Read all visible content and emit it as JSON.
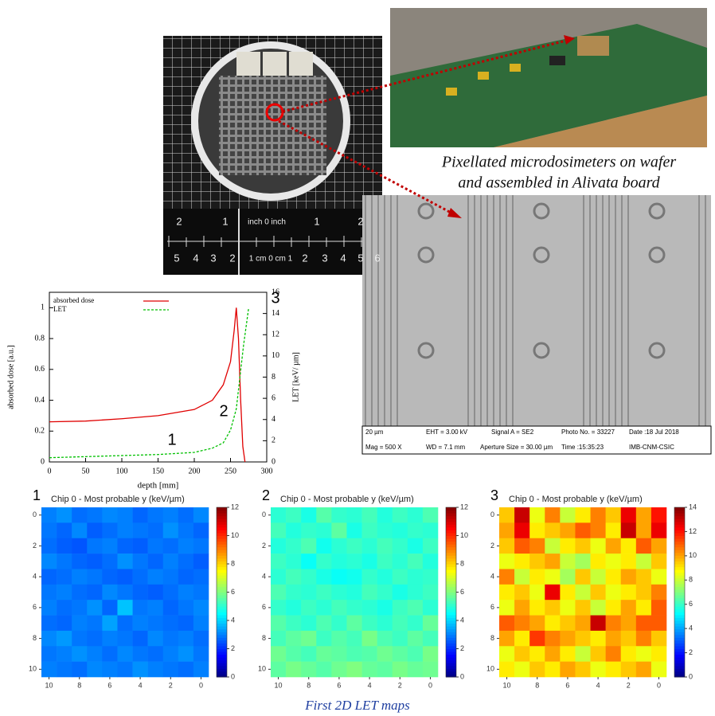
{
  "photos": {
    "caption": [
      "Pixellated microdosimeters on wafer",
      "and assembled in Alivata board"
    ],
    "ruler_top": [
      "2",
      "1",
      "inch 0 inch",
      "1",
      "2"
    ],
    "ruler_bottom": [
      "5",
      "4",
      "3",
      "2",
      "1 cm 0 cm 1",
      "2",
      "3",
      "4",
      "5",
      "6"
    ],
    "sem_info": [
      "20 µm",
      "Mag =   500 X",
      "EHT =  3.00 kV",
      "WD =  7.1 mm",
      "Signal A = SE2",
      "Aperture Size = 30.00 µm",
      "Photo No. = 33227",
      "Time :15:35:23",
      "Date :18 Jul 2018",
      "IMB-CNM-CSIC"
    ]
  },
  "chart_data": [
    {
      "type": "line",
      "xlabel": "depth [mm]",
      "ylabel": "absorbed dose [a.u.]",
      "y2label": "LET [keV/ µm]",
      "xlim": [
        0,
        300
      ],
      "xticks": [
        0,
        50,
        100,
        150,
        200,
        250,
        300
      ],
      "ylim": [
        0,
        1.1
      ],
      "yticks": [
        0,
        0.2,
        0.4,
        0.6,
        0.8,
        1
      ],
      "y2lim": [
        0,
        16
      ],
      "y2ticks": [
        0,
        2,
        4,
        6,
        8,
        10,
        12,
        14,
        16
      ],
      "legend": "top-left",
      "annotations": [
        "1",
        "2",
        "3"
      ],
      "series": [
        {
          "name": "absorbed dose",
          "color": "#e00000",
          "dash": false,
          "x": [
            0,
            50,
            100,
            150,
            200,
            225,
            240,
            250,
            255,
            258,
            261,
            264,
            267,
            270
          ],
          "values": [
            0.26,
            0.265,
            0.28,
            0.3,
            0.34,
            0.4,
            0.5,
            0.65,
            0.85,
            1.0,
            0.8,
            0.4,
            0.1,
            0
          ]
        },
        {
          "name": "LET",
          "color": "#00c000",
          "dash": true,
          "axis": "y2",
          "x": [
            0,
            50,
            100,
            150,
            200,
            225,
            240,
            250,
            258,
            263,
            268,
            275
          ],
          "values": [
            0.4,
            0.5,
            0.6,
            0.7,
            0.9,
            1.3,
            1.8,
            3,
            5,
            8,
            11,
            14.5
          ]
        }
      ]
    },
    {
      "type": "heatmap",
      "panel": "1",
      "title": "Chip 0 - Most probable y (keV/µm)",
      "colormap": "jet",
      "xlim": [
        10.5,
        -0.5
      ],
      "xticks": [
        10,
        8,
        6,
        4,
        2,
        0
      ],
      "ylim": [
        -0.5,
        10.5
      ],
      "yticks": [
        0,
        2,
        4,
        6,
        8,
        10
      ],
      "clim": [
        0,
        12
      ],
      "cticks": [
        0,
        2,
        4,
        6,
        8,
        10,
        12
      ],
      "values": [
        [
          3.0,
          3.2,
          2.8,
          2.9,
          3.1,
          3.0,
          2.7,
          2.9,
          3.0,
          2.8,
          3.1
        ],
        [
          2.9,
          2.7,
          3.1,
          2.6,
          2.8,
          3.0,
          2.9,
          2.8,
          3.2,
          2.9,
          2.7
        ],
        [
          2.8,
          2.6,
          2.5,
          2.9,
          3.0,
          2.7,
          2.6,
          2.9,
          2.8,
          3.0,
          2.9
        ],
        [
          3.1,
          2.9,
          2.7,
          2.6,
          2.8,
          3.2,
          2.9,
          2.7,
          3.0,
          2.8,
          2.6
        ],
        [
          2.7,
          2.8,
          3.0,
          2.9,
          2.7,
          2.6,
          2.8,
          3.0,
          2.9,
          2.7,
          2.8
        ],
        [
          2.9,
          3.0,
          2.8,
          2.7,
          3.1,
          2.9,
          2.7,
          2.6,
          2.8,
          3.0,
          2.9
        ],
        [
          3.0,
          2.8,
          2.9,
          3.2,
          2.7,
          3.8,
          2.9,
          3.0,
          2.7,
          2.9,
          3.1
        ],
        [
          2.8,
          2.7,
          3.0,
          2.9,
          3.4,
          2.8,
          3.0,
          2.9,
          2.8,
          2.7,
          3.0
        ],
        [
          3.1,
          3.3,
          2.9,
          2.8,
          3.0,
          2.9,
          2.7,
          3.1,
          2.9,
          3.0,
          2.8
        ],
        [
          2.9,
          3.0,
          3.2,
          3.0,
          2.8,
          3.1,
          2.9,
          2.8,
          3.0,
          3.2,
          2.9
        ],
        [
          3.0,
          2.9,
          2.8,
          3.1,
          3.0,
          2.9,
          3.2,
          3.0,
          2.9,
          2.8,
          3.0
        ]
      ]
    },
    {
      "type": "heatmap",
      "panel": "2",
      "title": "Chip 0 - Most probable y (keV/µm)",
      "colormap": "jet",
      "xlim": [
        10.5,
        -0.5
      ],
      "xticks": [
        10,
        8,
        6,
        4,
        2,
        0
      ],
      "ylim": [
        -0.5,
        10.5
      ],
      "yticks": [
        0,
        2,
        4,
        6,
        8,
        10
      ],
      "clim": [
        0,
        12
      ],
      "cticks": [
        0,
        2,
        4,
        6,
        8,
        10,
        12
      ],
      "values": [
        [
          5.0,
          5.2,
          4.8,
          5.5,
          5.1,
          5.0,
          5.3,
          4.9,
          5.2,
          5.0,
          5.4
        ],
        [
          5.3,
          4.9,
          5.1,
          5.0,
          5.6,
          4.8,
          5.2,
          5.0,
          4.9,
          5.1,
          5.0
        ],
        [
          4.9,
          5.1,
          5.4,
          4.7,
          5.0,
          5.2,
          5.0,
          5.3,
          5.1,
          4.8,
          5.2
        ],
        [
          5.2,
          5.0,
          4.6,
          5.1,
          4.9,
          5.0,
          4.8,
          5.2,
          5.0,
          5.3,
          4.9
        ],
        [
          5.0,
          5.3,
          5.1,
          4.8,
          4.6,
          4.7,
          5.1,
          4.9,
          5.2,
          5.0,
          5.1
        ],
        [
          5.4,
          5.1,
          5.0,
          5.2,
          5.0,
          4.9,
          5.3,
          5.1,
          4.8,
          5.0,
          5.2
        ],
        [
          5.1,
          4.9,
          5.2,
          5.0,
          5.3,
          5.1,
          5.0,
          4.8,
          5.2,
          5.4,
          5.0
        ],
        [
          5.5,
          5.2,
          5.0,
          5.4,
          5.1,
          5.6,
          5.2,
          5.0,
          5.3,
          5.1,
          5.7
        ],
        [
          5.3,
          5.6,
          5.8,
          5.2,
          5.5,
          5.3,
          5.9,
          5.4,
          5.2,
          5.6,
          5.3
        ],
        [
          5.8,
          5.5,
          5.3,
          5.7,
          5.6,
          5.4,
          5.5,
          5.8,
          5.6,
          5.4,
          5.9
        ],
        [
          5.6,
          5.9,
          5.7,
          5.5,
          5.8,
          6.0,
          5.7,
          5.6,
          5.9,
          5.7,
          5.8
        ]
      ]
    },
    {
      "type": "heatmap",
      "panel": "3",
      "title": "Chip 0 - Most probable y (keV/µm)",
      "colormap": "jet",
      "xlim": [
        10.5,
        -0.5
      ],
      "xticks": [
        10,
        8,
        6,
        4,
        2,
        0
      ],
      "ylim": [
        -0.5,
        10.5
      ],
      "yticks": [
        0,
        2,
        4,
        6,
        8,
        10
      ],
      "clim": [
        0,
        14
      ],
      "cticks": [
        0,
        2,
        4,
        6,
        8,
        10,
        12,
        14
      ],
      "values": [
        [
          9.5,
          13.0,
          8.5,
          10.5,
          8.0,
          9.0,
          10.5,
          9.5,
          12.5,
          10.0,
          12.0
        ],
        [
          10.0,
          12.5,
          9.0,
          9.5,
          10.0,
          11.0,
          10.5,
          9.0,
          13.0,
          10.0,
          12.5
        ],
        [
          9.5,
          11.0,
          10.5,
          8.0,
          9.0,
          9.5,
          8.5,
          10.0,
          9.0,
          11.0,
          10.0
        ],
        [
          8.5,
          9.0,
          9.5,
          10.0,
          8.0,
          7.5,
          9.0,
          8.5,
          9.0,
          8.0,
          9.5
        ],
        [
          10.5,
          8.0,
          9.0,
          8.5,
          7.5,
          9.5,
          8.0,
          9.0,
          10.0,
          9.5,
          8.5
        ],
        [
          9.0,
          9.5,
          8.5,
          12.5,
          9.0,
          8.0,
          9.5,
          8.5,
          9.0,
          9.5,
          10.5
        ],
        [
          8.5,
          10.0,
          9.0,
          9.5,
          8.5,
          9.5,
          8.0,
          9.0,
          10.0,
          9.0,
          11.0
        ],
        [
          11.0,
          10.5,
          10.0,
          9.0,
          9.5,
          10.0,
          13.0,
          10.5,
          10.0,
          11.0,
          11.0
        ],
        [
          10.0,
          9.0,
          11.5,
          10.5,
          10.0,
          9.5,
          9.0,
          10.0,
          9.5,
          10.5,
          9.5
        ],
        [
          8.5,
          9.5,
          9.0,
          10.0,
          9.0,
          8.0,
          9.5,
          10.5,
          9.0,
          8.5,
          9.0
        ],
        [
          9.0,
          8.5,
          9.5,
          9.0,
          10.0,
          9.5,
          8.5,
          9.0,
          9.5,
          10.0,
          8.5
        ]
      ]
    }
  ],
  "caption": "First 2D LET maps"
}
